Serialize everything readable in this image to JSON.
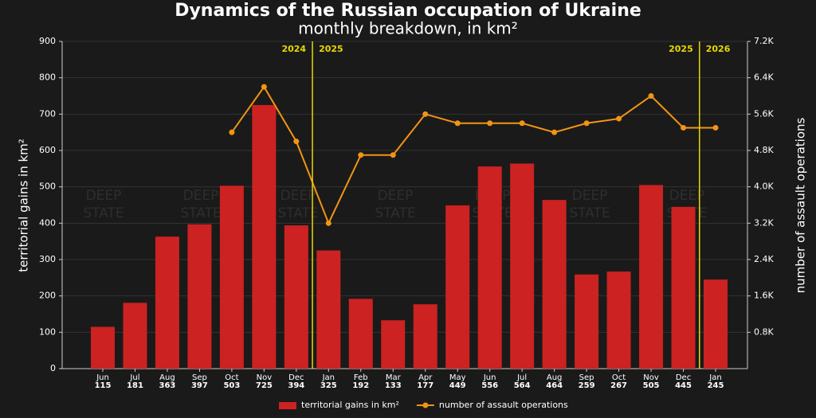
{
  "chart_data": {
    "type": "bar",
    "title": "Dynamics of the Russian occupation of Ukraine",
    "subtitle": "monthly breakdown, in km²",
    "ylabel": "territorial gains in km²",
    "y2label": "number of assault operations",
    "watermark": [
      "DEEP",
      "STATE"
    ],
    "year_dividers": [
      [
        "2024",
        "2025"
      ],
      [
        "2025",
        "2026"
      ]
    ],
    "divider_color": "#e8d800",
    "categories": [
      "Jun",
      "Jul",
      "Aug",
      "Sep",
      "Oct",
      "Nov",
      "Dec",
      "Jan",
      "Feb",
      "Mar",
      "Apr",
      "May",
      "Jun",
      "Jul",
      "Aug",
      "Sep",
      "Oct",
      "Nov",
      "Dec",
      "Jan"
    ],
    "series": [
      {
        "name": "territorial gains in km²",
        "type": "bar",
        "color": "#cc2222",
        "values": [
          115,
          181,
          363,
          397,
          503,
          725,
          394,
          325,
          192,
          133,
          177,
          449,
          556,
          564,
          464,
          259,
          267,
          505,
          445,
          245
        ]
      },
      {
        "name": "number of assault operations",
        "type": "line",
        "axis": "y2",
        "color": "#f39414",
        "values": [
          null,
          null,
          null,
          null,
          5200,
          6200,
          5000,
          3200,
          4700,
          4700,
          5600,
          5400,
          5400,
          5400,
          5200,
          5400,
          5500,
          6000,
          5300,
          5300
        ]
      }
    ],
    "ylim": [
      0,
      900
    ],
    "yticks": [
      0,
      100,
      200,
      300,
      400,
      500,
      600,
      700,
      800,
      900
    ],
    "y2lim": [
      0,
      7200
    ],
    "y2ticks": [
      {
        "value": 800,
        "label": "0.8K"
      },
      {
        "value": 1600,
        "label": "1.6K"
      },
      {
        "value": 2400,
        "label": "2.4K"
      },
      {
        "value": 3200,
        "label": "3.2K"
      },
      {
        "value": 4000,
        "label": "4.0K"
      },
      {
        "value": 4800,
        "label": "4.8K"
      },
      {
        "value": 5600,
        "label": "5.6K"
      },
      {
        "value": 6400,
        "label": "6.4K"
      },
      {
        "value": 7200,
        "label": "7.2K"
      }
    ],
    "grid": true
  }
}
